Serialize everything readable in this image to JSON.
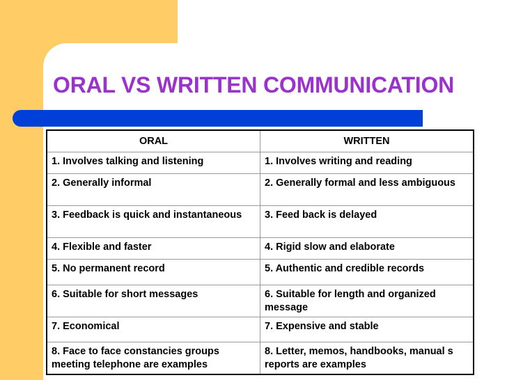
{
  "slide": {
    "title": "ORAL VS WRITTEN COMMUNICATION",
    "colors": {
      "title": "#9933CC",
      "accent_bar": "#0040D8",
      "corner_block": "#FFCC66"
    }
  },
  "table": {
    "headers": [
      "ORAL",
      "WRITTEN"
    ],
    "rows": [
      {
        "oral": "1. Involves talking and listening",
        "written": "1. Involves writing and reading"
      },
      {
        "oral": "2. Generally informal",
        "written": "2. Generally formal and less ambiguous"
      },
      {
        "oral": "3. Feedback is quick and instantaneous",
        "written": "3. Feed back is delayed"
      },
      {
        "oral": "4. Flexible and faster",
        "written": "4. Rigid slow and elaborate"
      },
      {
        "oral": "5. No permanent record",
        "written": "5. Authentic and credible records"
      },
      {
        "oral": "6. Suitable for short messages",
        "written": "6. Suitable for length and organized message"
      },
      {
        "oral": "7. Economical",
        "written": "7. Expensive and stable"
      },
      {
        "oral": "8. Face to face constancies groups meeting telephone are examples",
        "written": "8. Letter, memos, handbooks, manual s reports are examples"
      }
    ]
  }
}
